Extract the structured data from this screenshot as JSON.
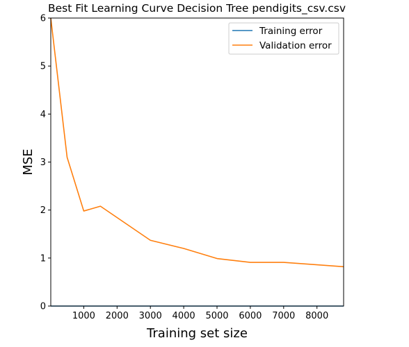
{
  "chart_data": {
    "type": "line",
    "title": "Best Fit Learning Curve Decision Tree pendigits_csv.csv",
    "xlabel": "Training set size",
    "ylabel": "MSE",
    "xlim": [
      10,
      8800
    ],
    "ylim": [
      0,
      6
    ],
    "xticks": [
      1000,
      2000,
      3000,
      4000,
      5000,
      6000,
      7000,
      8000
    ],
    "yticks": [
      0,
      1,
      2,
      3,
      4,
      5,
      6
    ],
    "grid": false,
    "legend_position": "top-right",
    "series": [
      {
        "name": "Training error",
        "color": "#1f77b4",
        "x": [
          10,
          500,
          1000,
          1500,
          3000,
          4000,
          5000,
          6000,
          7000,
          8800
        ],
        "y": [
          0,
          0,
          0,
          0,
          0,
          0,
          0,
          0,
          0,
          0
        ]
      },
      {
        "name": "Validation error",
        "color": "#ff7f0e",
        "x": [
          10,
          500,
          1000,
          1500,
          3000,
          4000,
          5000,
          6000,
          7000,
          8800
        ],
        "y": [
          6.0,
          3.1,
          1.98,
          2.08,
          1.37,
          1.2,
          0.99,
          0.91,
          0.91,
          0.82
        ]
      }
    ]
  }
}
